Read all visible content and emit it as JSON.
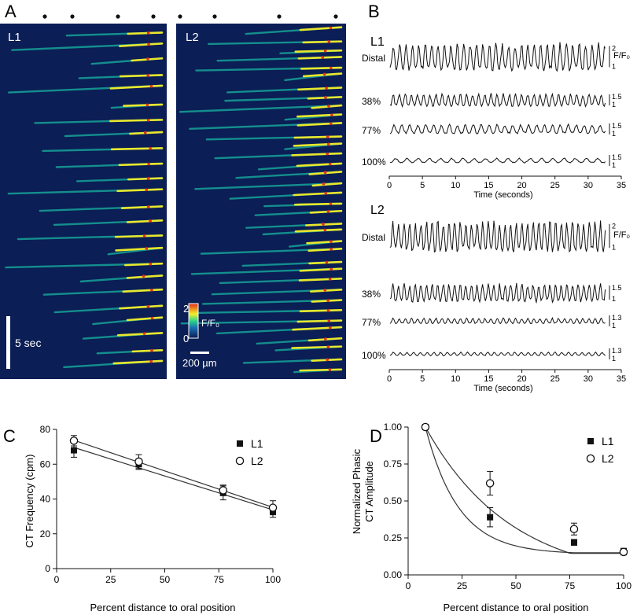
{
  "panel_a": {
    "letter": "A",
    "left_title": "L1",
    "right_title": "L2",
    "scale_time": "5 sec",
    "scale_space": "200 µm",
    "colorbar_max": "2",
    "colorbar_min": "0",
    "colorbar_label": "F/F₀"
  },
  "panel_b": {
    "letter": "B",
    "groups": [
      {
        "title": "L1",
        "traces": [
          {
            "label": "Distal",
            "scale_top": "2",
            "scale_bottom": "1",
            "unit": "F/F₀"
          },
          {
            "label": "38%",
            "scale_top": "1.5",
            "scale_bottom": "1"
          },
          {
            "label": "77%",
            "scale_top": "1.5",
            "scale_bottom": "1"
          },
          {
            "label": "100%",
            "scale_top": "1.5",
            "scale_bottom": "1"
          }
        ],
        "xlabel": "Time (seconds)"
      },
      {
        "title": "L2",
        "traces": [
          {
            "label": "Distal",
            "scale_top": "2",
            "scale_bottom": "1",
            "unit": "F/F₀"
          },
          {
            "label": "38%",
            "scale_top": "1.5",
            "scale_bottom": "1"
          },
          {
            "label": "77%",
            "scale_top": "1.3",
            "scale_bottom": "1"
          },
          {
            "label": "100%",
            "scale_top": "1.3",
            "scale_bottom": "1"
          }
        ],
        "xlabel": "Time (seconds)"
      }
    ],
    "xticks": [
      "0",
      "5",
      "10",
      "15",
      "20",
      "25",
      "30",
      "35"
    ]
  },
  "panel_c": {
    "letter": "C",
    "ylabel": "CT Frequency (cpm)",
    "xlabel": "Percent distance to oral position",
    "xticks": [
      "0",
      "25",
      "50",
      "75",
      "100"
    ],
    "yticks": [
      "0",
      "20",
      "40",
      "60",
      "80"
    ],
    "legend": [
      "L1",
      "L2"
    ]
  },
  "panel_d": {
    "letter": "D",
    "ylabel_line1": "Normalized Phasic",
    "ylabel_line2": "CT Amplitude",
    "xlabel": "Percent distance to oral position",
    "xticks": [
      "0",
      "25",
      "50",
      "75",
      "100"
    ],
    "yticks": [
      "0.00",
      "0.25",
      "0.50",
      "0.75",
      "1.00"
    ],
    "legend": [
      "L1",
      "L2"
    ]
  },
  "chart_data": [
    {
      "type": "scatter",
      "panel": "C",
      "xlabel": "Percent distance to oral position",
      "ylabel": "CT Frequency (cpm)",
      "xlim": [
        0,
        100
      ],
      "ylim": [
        0,
        80
      ],
      "fit": "linear",
      "series": [
        {
          "name": "L1",
          "marker": "filled-square",
          "x": [
            8,
            38,
            77,
            100
          ],
          "y": [
            68,
            60,
            43.5,
            32.5
          ],
          "err": [
            4,
            3,
            4,
            3
          ]
        },
        {
          "name": "L2",
          "marker": "open-circle",
          "x": [
            8,
            38,
            77,
            100
          ],
          "y": [
            73.5,
            61.5,
            45,
            35
          ],
          "err": [
            3,
            4,
            3,
            4
          ]
        }
      ]
    },
    {
      "type": "scatter",
      "panel": "D",
      "xlabel": "Percent distance to oral position",
      "ylabel": "Normalized Phasic CT Amplitude",
      "xlim": [
        0,
        100
      ],
      "ylim": [
        0,
        1
      ],
      "fit": "exponential decay",
      "series": [
        {
          "name": "L1",
          "marker": "filled-square",
          "x": [
            8,
            38,
            77,
            100
          ],
          "y": [
            1.0,
            0.39,
            0.22,
            0.16
          ],
          "err": [
            0,
            0.065,
            0.02,
            0.02
          ]
        },
        {
          "name": "L2",
          "marker": "open-circle",
          "x": [
            8,
            38,
            77,
            100
          ],
          "y": [
            1.0,
            0.62,
            0.31,
            0.155
          ],
          "err": [
            0,
            0.08,
            0.04,
            0.02
          ]
        }
      ]
    }
  ]
}
